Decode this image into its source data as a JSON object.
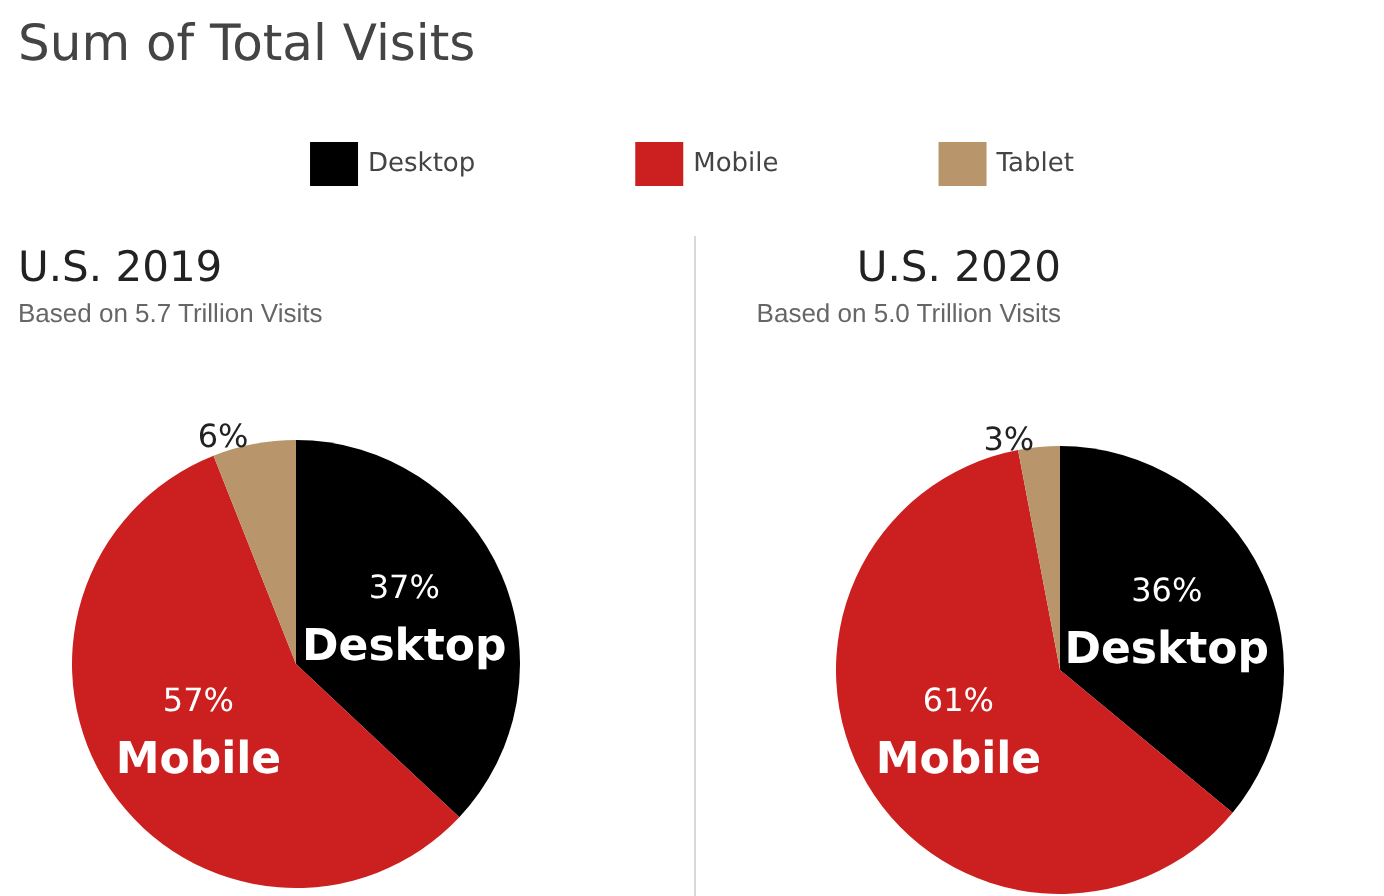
{
  "chart_data": [
    {
      "type": "pie",
      "title": "U.S. 2019",
      "subtitle": "Based on 5.7 Trillion Visits",
      "annotations": [
        "Sum of Total Visits"
      ],
      "categories": [
        "Desktop",
        "Mobile",
        "Tablet"
      ],
      "values": [
        37,
        57,
        6
      ],
      "colors": [
        "#000000",
        "#cc1f1f",
        "#b8956a"
      ],
      "value_labels": [
        "37%",
        "57%",
        "6%"
      ],
      "legend": "top"
    },
    {
      "type": "pie",
      "title": "U.S. 2020",
      "subtitle": "Based on 5.0 Trillion Visits",
      "categories": [
        "Desktop",
        "Mobile",
        null
      ],
      "values": [
        36,
        61,
        3
      ],
      "colors": [
        "#000000",
        "#cc1f1f",
        "#b8956a"
      ],
      "value_labels": [
        "36%",
        "61%",
        "3%"
      ]
    }
  ]
}
